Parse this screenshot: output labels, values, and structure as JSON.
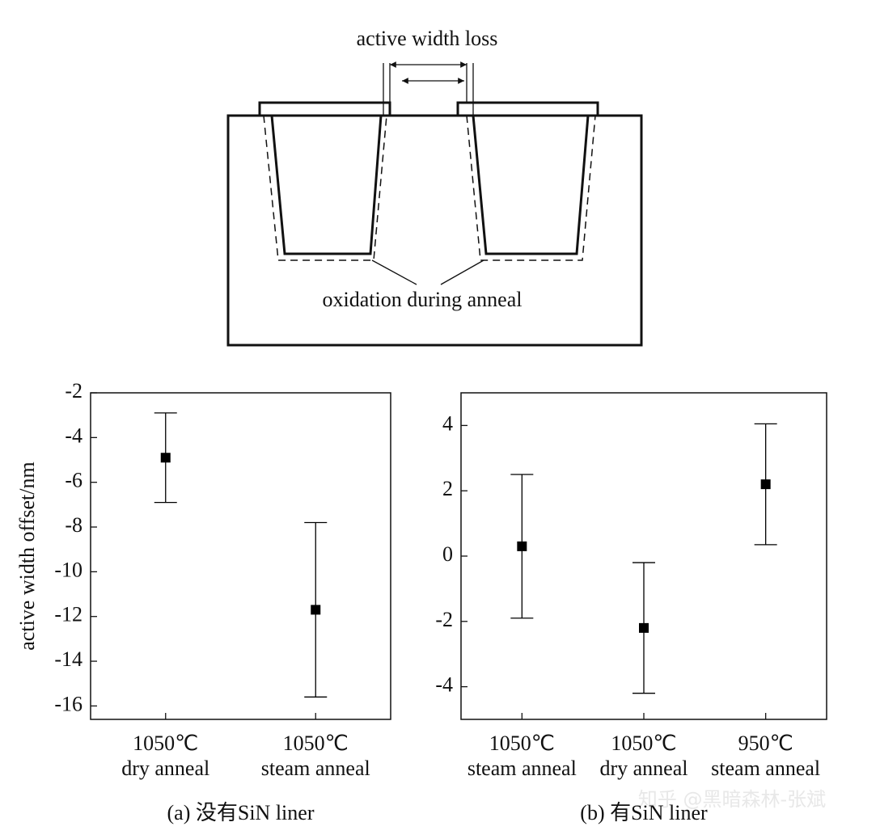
{
  "diagram": {
    "labels": [
      "active width loss",
      "oxidation during anneal"
    ]
  },
  "watermark": "知乎 @黑暗森林-张斌",
  "chart_data": [
    {
      "type": "errorbar",
      "caption": "(a) 没有SiN liner",
      "y_label": "active width offset/nm",
      "categories": [
        [
          "1050℃",
          "dry anneal"
        ],
        [
          "1050℃",
          "steam anneal"
        ]
      ],
      "values": [
        -4.9,
        -11.7
      ],
      "errors": [
        2.0,
        3.9
      ],
      "color": "#000000",
      "ylim": [
        -16.6,
        -2
      ],
      "yticks": [
        -2,
        -4,
        -6,
        -8,
        -10,
        -12,
        -14,
        -16
      ]
    },
    {
      "type": "errorbar",
      "caption": "(b) 有SiN liner",
      "categories": [
        [
          "1050℃",
          "steam anneal"
        ],
        [
          "1050℃",
          "dry anneal"
        ],
        [
          "950℃",
          "steam anneal"
        ]
      ],
      "values": [
        0.3,
        -2.2,
        2.2
      ],
      "errors": [
        2.2,
        2.0,
        1.85
      ],
      "color": "#000000",
      "ylim": [
        -5,
        5
      ],
      "yticks": [
        -4,
        -2,
        0,
        2,
        4
      ]
    }
  ]
}
